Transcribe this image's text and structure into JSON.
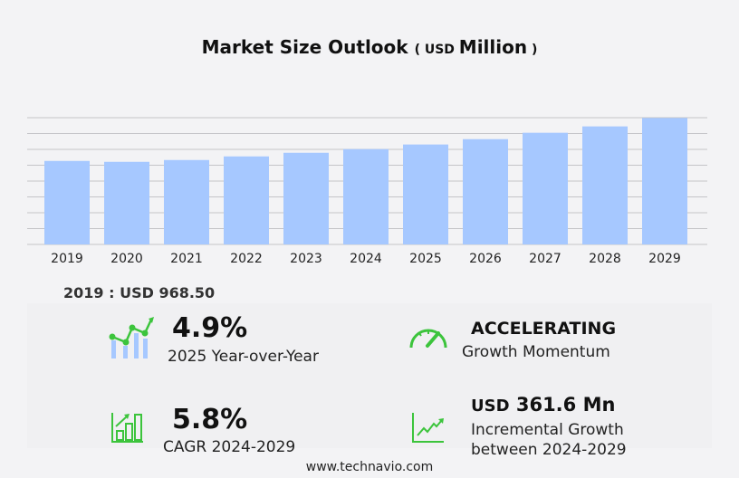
{
  "chart_data": {
    "type": "bar",
    "title": "Market Size Outlook",
    "title_unit_prefix": "USD",
    "title_unit": "Million",
    "categories": [
      "2019",
      "2020",
      "2021",
      "2022",
      "2023",
      "2024",
      "2025",
      "2026",
      "2027",
      "2028",
      "2029"
    ],
    "values": [
      968.5,
      958,
      979,
      1021,
      1063,
      1105,
      1159,
      1221,
      1295,
      1369,
      1466.6
    ],
    "ylim": [
      0,
      1470
    ],
    "grid": true,
    "bar_color": "#a6c8ff"
  },
  "base_label": "2019 : USD  968.50",
  "stats": {
    "yoy": {
      "value": "4.9%",
      "label": "2025 Year-over-Year",
      "icon": "growth-chart-icon"
    },
    "momentum": {
      "value": "ACCELERATING",
      "label": "Growth Momentum",
      "icon": "speedometer-icon"
    },
    "cagr": {
      "value": "5.8%",
      "label": "CAGR 2024-2029",
      "icon": "bar-growth-icon"
    },
    "incremental": {
      "prefix": "USD",
      "value": "361.6 Mn",
      "label1": "Incremental Growth",
      "label2": "between 2024-2029",
      "icon": "trend-line-icon"
    }
  },
  "accent": "#3cc43c",
  "footer": "www.technavio.com"
}
